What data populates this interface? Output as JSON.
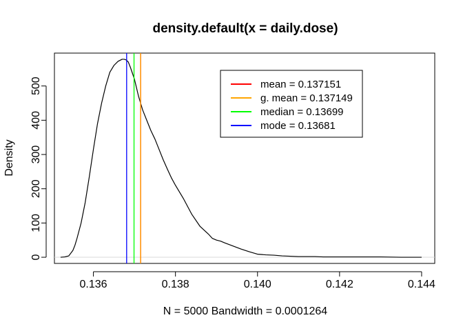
{
  "chart_data": {
    "type": "line",
    "title": "density.default(x = daily.dose)",
    "xlabel": "N = 5000   Bandwidth = 0.0001264",
    "ylabel": "Density",
    "xlim": [
      0.13505,
      0.14432
    ],
    "ylim": [
      -18,
      596
    ],
    "x_ticks": [
      0.136,
      0.138,
      0.14,
      0.142,
      0.144
    ],
    "x_tick_labels": [
      "0.136",
      "0.138",
      "0.140",
      "0.142",
      "0.144"
    ],
    "y_ticks": [
      0,
      100,
      200,
      300,
      400,
      500
    ],
    "y_tick_labels": [
      "0",
      "100",
      "200",
      "300",
      "400",
      "500"
    ],
    "grid": false,
    "legend_position": "top-right",
    "series": [
      {
        "color": "#000000",
        "x": [
          0.1352,
          0.1353,
          0.1354,
          0.1355,
          0.13555,
          0.1356,
          0.1357,
          0.1358,
          0.1359,
          0.136,
          0.1361,
          0.1362,
          0.1363,
          0.1364,
          0.1365,
          0.1366,
          0.1367,
          0.13675,
          0.1368,
          0.13685,
          0.1369,
          0.137,
          0.1371,
          0.1372,
          0.1373,
          0.1374,
          0.1375,
          0.1376,
          0.1377,
          0.1378,
          0.1379,
          0.138,
          0.1382,
          0.1384,
          0.1386,
          0.1388,
          0.1389,
          0.139,
          0.1391,
          0.1392,
          0.1394,
          0.1396,
          0.1398,
          0.14,
          0.1402,
          0.1404,
          0.1406,
          0.1408,
          0.141,
          0.1412,
          0.1414,
          0.1416,
          0.1418,
          0.142,
          0.1425,
          0.143,
          0.1435,
          0.144
        ],
        "y": [
          0,
          1,
          4,
          20,
          35,
          55,
          100,
          160,
          235,
          315,
          390,
          450,
          500,
          540,
          560,
          572,
          578,
          578,
          576,
          570,
          555,
          520,
          470,
          430,
          400,
          370,
          345,
          315,
          285,
          258,
          232,
          210,
          170,
          125,
          90,
          68,
          55,
          50,
          47,
          42,
          33,
          24,
          16,
          9,
          7,
          6,
          4,
          3,
          2,
          2,
          2,
          1,
          1,
          1,
          1,
          1,
          0,
          0
        ]
      }
    ],
    "vlines": [
      {
        "name": "mean = 0.137151",
        "x": 0.137151,
        "color": "#FF0000"
      },
      {
        "name": "g. mean = 0.137149",
        "x": 0.137149,
        "color": "#FFA500"
      },
      {
        "name": "median = 0.13699",
        "x": 0.13699,
        "color": "#00FF00"
      },
      {
        "name": "mode = 0.13681",
        "x": 0.13681,
        "color": "#0000FF"
      }
    ]
  }
}
